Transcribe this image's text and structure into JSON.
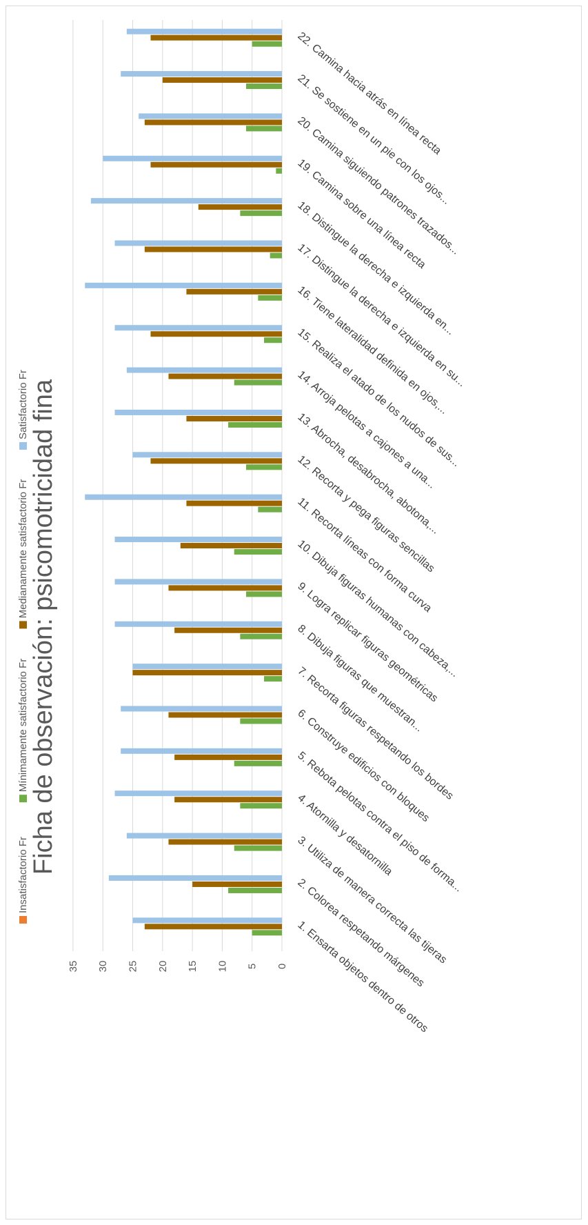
{
  "chart_data": {
    "type": "bar",
    "orientation": "horizontal",
    "title": "Ficha de observación: psicomotricidad fina",
    "xlabel": "",
    "ylabel": "",
    "xlim": [
      0,
      35
    ],
    "tick_values": [
      0,
      5,
      10,
      15,
      20,
      25,
      30,
      35
    ],
    "grid": true,
    "legend_position": "bottom",
    "categories": [
      "1. Ensarta objetos dentro de otros",
      "2. Colorea respetando márgenes",
      "3. Utiliza de manera correcta las tijeras",
      "4. Atornilla y desatornilla",
      "5. Rebota pelotas contra el piso de forma...",
      "6. Construye edificios con bloques",
      "7. Recorta figuras respetando los bordes",
      "8. Dibuja figuras que muestran...",
      "9. Logra replicar figuras geométricas",
      "10. Dibuja figuras humanas con cabeza,...",
      "11. Recorta líneas con forma curva",
      "12. Recorta y pega figuras sencillas",
      "13. Abrocha, desabrocha, abotona,...",
      "14. Arroja pelotas a cajones a una...",
      "15. Realiza el atado de los nudos de sus...",
      "16. Tiene lateralidad definida en ojos,...",
      "17. Distingue la derecha e izquierda en su...",
      "18. Distingue la derecha e izquierda en...",
      "19. Camina sobre una línea recta",
      "20. Camina siguiendo patrones trazados...",
      "21. Se sostiene en un pie con los ojos...",
      "22. Camina hacia atrás en línea recta"
    ],
    "series": [
      {
        "name": "Insatisfactorio Fr",
        "color": "#ed7d31",
        "values": [
          0,
          0,
          0,
          0,
          0,
          0,
          0,
          0,
          0,
          0,
          0,
          0,
          0,
          0,
          0,
          0,
          0,
          0,
          0,
          0,
          0,
          0
        ]
      },
      {
        "name": "Mínimamente satisfactorio Fr",
        "color": "#70ad47",
        "values": [
          5,
          9,
          8,
          7,
          8,
          7,
          3,
          7,
          6,
          8,
          4,
          6,
          9,
          8,
          3,
          4,
          2,
          7,
          1,
          6,
          6,
          5
        ]
      },
      {
        "name": "Medianamente satisfactorio Fr",
        "color": "#9c6500",
        "values": [
          23,
          15,
          19,
          18,
          18,
          19,
          25,
          18,
          19,
          17,
          16,
          22,
          16,
          19,
          22,
          16,
          23,
          14,
          22,
          23,
          20,
          22
        ]
      },
      {
        "name": "Satisfactorio Fr",
        "color": "#9dc3e6",
        "values": [
          25,
          29,
          26,
          28,
          27,
          27,
          25,
          28,
          28,
          28,
          33,
          25,
          28,
          26,
          28,
          33,
          28,
          32,
          30,
          24,
          27,
          26
        ]
      }
    ]
  }
}
